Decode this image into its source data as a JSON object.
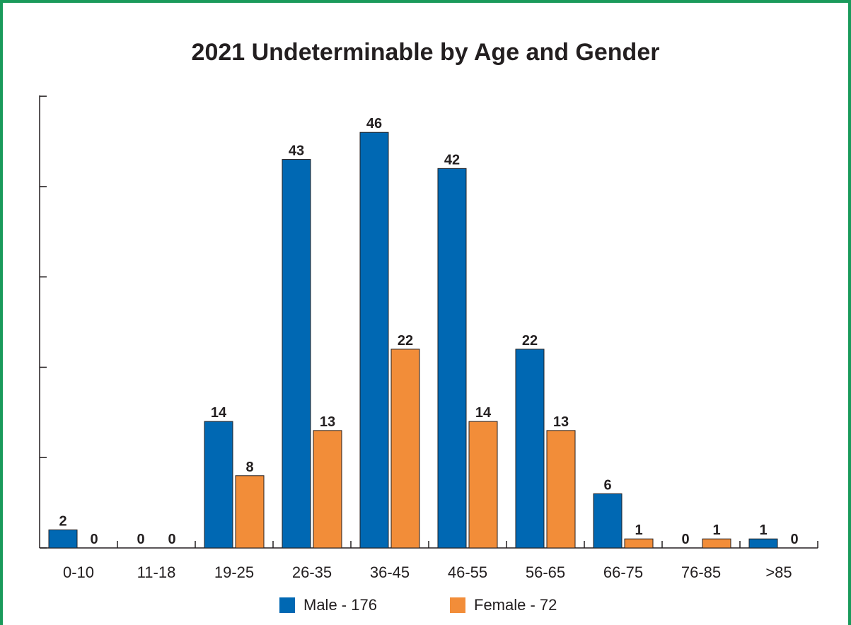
{
  "chart_data": {
    "type": "bar",
    "title": "2021 Undeterminable by Age and Gender",
    "categories": [
      "0-10",
      "11-18",
      "19-25",
      "26-35",
      "36-45",
      "46-55",
      "56-65",
      "66-75",
      "76-85",
      ">85"
    ],
    "series": [
      {
        "name": "Male - 176",
        "color": "#0068b3",
        "values": [
          2,
          0,
          14,
          43,
          46,
          42,
          22,
          6,
          0,
          1
        ]
      },
      {
        "name": "Female - 72",
        "color": "#f28d39",
        "values": [
          0,
          0,
          8,
          13,
          22,
          14,
          13,
          1,
          1,
          0
        ]
      }
    ],
    "ylim": [
      0,
      48
    ],
    "y_ticks": [
      0,
      10,
      20,
      30,
      40
    ],
    "y_tick_labels_shown": false,
    "data_labels": true,
    "grid": false,
    "legend_position": "bottom-center"
  },
  "colors": {
    "frame_border": "#1a9a5b",
    "axis": "#231f20"
  }
}
